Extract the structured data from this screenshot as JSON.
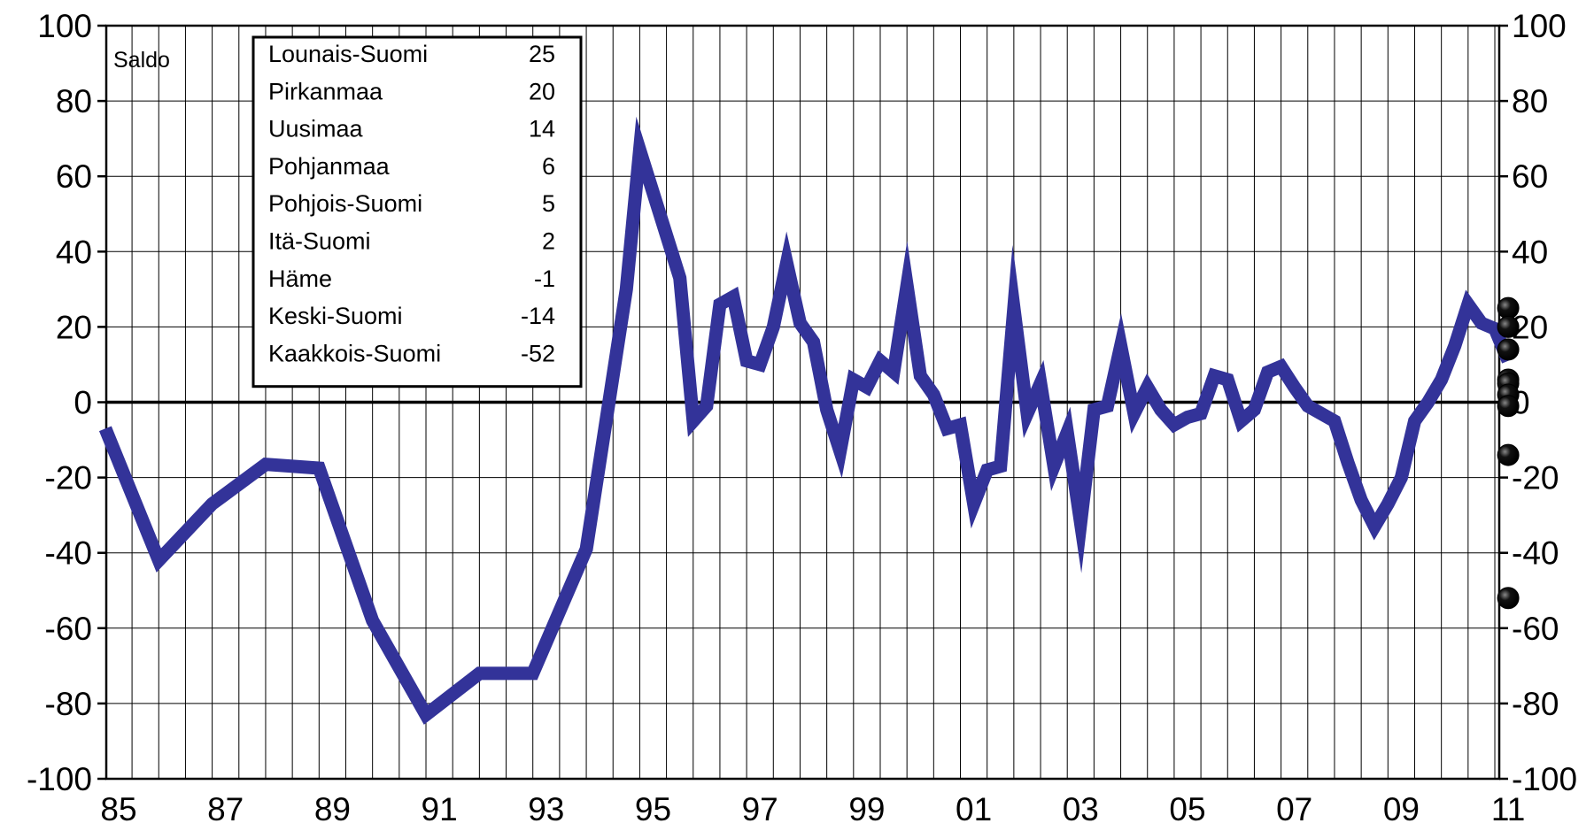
{
  "chart_data": {
    "type": "line",
    "xlabel": "",
    "ylabel": "",
    "ylabel_inner": "Saldo",
    "ylim": [
      -100,
      100
    ],
    "y_ticks": [
      100,
      80,
      60,
      40,
      20,
      0,
      -20,
      -40,
      -60,
      -80,
      -100
    ],
    "y_tick_labels": [
      "100",
      "80",
      "60",
      "40",
      "20",
      "0",
      "-20",
      "-40",
      "-60",
      "-80",
      "-100"
    ],
    "xlim": [
      1984.6,
      2011.75
    ],
    "x_tick_labels": [
      "85",
      "87",
      "89",
      "91",
      "93",
      "95",
      "97",
      "99",
      "01",
      "03",
      "05",
      "07",
      "09",
      "11"
    ],
    "x_tick_years": [
      1985,
      1987,
      1989,
      1991,
      1993,
      1995,
      1997,
      1999,
      2001,
      2003,
      2005,
      2007,
      2009,
      2011
    ],
    "grid": true,
    "series": [
      {
        "color": "#333399",
        "points": [
          [
            1984.75,
            -7
          ],
          [
            1985.75,
            -42
          ],
          [
            1986.75,
            -27
          ],
          [
            1987.75,
            -16.5
          ],
          [
            1988.75,
            -17.5
          ],
          [
            1989.75,
            -58
          ],
          [
            1990.75,
            -83
          ],
          [
            1991.75,
            -72
          ],
          [
            1992.75,
            -72
          ],
          [
            1993.75,
            -39
          ],
          [
            1994.5,
            30
          ],
          [
            1994.75,
            67
          ],
          [
            1995.5,
            33
          ],
          [
            1995.75,
            -5
          ],
          [
            1996.0,
            -1
          ],
          [
            1996.25,
            26
          ],
          [
            1996.5,
            28
          ],
          [
            1996.75,
            11
          ],
          [
            1997.0,
            10
          ],
          [
            1997.25,
            20
          ],
          [
            1997.5,
            37
          ],
          [
            1997.75,
            21
          ],
          [
            1998.0,
            16
          ],
          [
            1998.25,
            -2
          ],
          [
            1998.5,
            -13
          ],
          [
            1998.75,
            6
          ],
          [
            1999.0,
            4
          ],
          [
            1999.25,
            11
          ],
          [
            1999.5,
            8
          ],
          [
            1999.75,
            31
          ],
          [
            2000.0,
            7
          ],
          [
            2000.25,
            2
          ],
          [
            2000.5,
            -7
          ],
          [
            2000.75,
            -6
          ],
          [
            2001.0,
            -27
          ],
          [
            2001.25,
            -18
          ],
          [
            2001.5,
            -17
          ],
          [
            2001.75,
            25
          ],
          [
            2002.0,
            -3
          ],
          [
            2002.25,
            5
          ],
          [
            2002.5,
            -17
          ],
          [
            2002.75,
            -8
          ],
          [
            2003.0,
            -32
          ],
          [
            2003.25,
            -2
          ],
          [
            2003.5,
            -1
          ],
          [
            2003.75,
            15
          ],
          [
            2004.0,
            -3
          ],
          [
            2004.25,
            4
          ],
          [
            2004.5,
            -2
          ],
          [
            2004.75,
            -6
          ],
          [
            2005.0,
            -4
          ],
          [
            2005.25,
            -3
          ],
          [
            2005.5,
            7
          ],
          [
            2005.75,
            6
          ],
          [
            2006.0,
            -5
          ],
          [
            2006.25,
            -2
          ],
          [
            2006.5,
            8
          ],
          [
            2006.75,
            9.5
          ],
          [
            2007.0,
            4
          ],
          [
            2007.25,
            -1
          ],
          [
            2007.5,
            -3
          ],
          [
            2007.75,
            -5
          ],
          [
            2008.0,
            -16
          ],
          [
            2008.25,
            -26
          ],
          [
            2008.5,
            -33
          ],
          [
            2008.75,
            -27
          ],
          [
            2009.0,
            -20
          ],
          [
            2009.25,
            -5
          ],
          [
            2009.5,
            0
          ],
          [
            2009.75,
            6
          ],
          [
            2010.0,
            15
          ],
          [
            2010.25,
            26
          ],
          [
            2010.5,
            21
          ],
          [
            2010.75,
            19.5
          ],
          [
            2011.0,
            11
          ]
        ]
      }
    ],
    "regions": {
      "color": "#000000",
      "x": 2011.0,
      "items": [
        {
          "name": "Lounais-Suomi",
          "value": 25,
          "value_label": "25"
        },
        {
          "name": "Pirkanmaa",
          "value": 20,
          "value_label": "20"
        },
        {
          "name": "Uusimaa",
          "value": 14,
          "value_label": "14"
        },
        {
          "name": "Pohjanmaa",
          "value": 6,
          "value_label": "6"
        },
        {
          "name": "Pohjois-Suomi",
          "value": 5,
          "value_label": "5"
        },
        {
          "name": "Itä-Suomi",
          "value": 2,
          "value_label": "2"
        },
        {
          "name": "Häme",
          "value": -1,
          "value_label": "-1"
        },
        {
          "name": "Keski-Suomi",
          "value": -14,
          "value_label": "-14"
        },
        {
          "name": "Kaakkois-Suomi",
          "value": -52,
          "value_label": "-52"
        }
      ]
    }
  }
}
